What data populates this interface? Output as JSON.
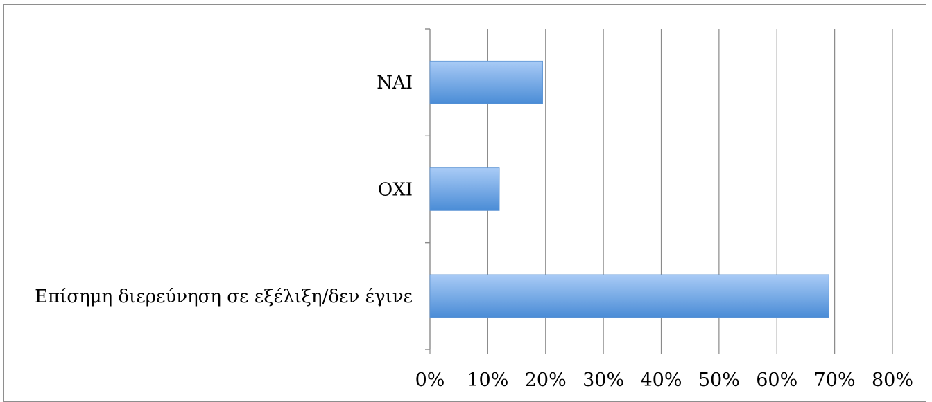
{
  "chart_data": {
    "type": "bar",
    "orientation": "horizontal",
    "title": "",
    "xlabel": "",
    "ylabel": "",
    "categories": [
      "ΝΑΙ",
      "ΟΧΙ",
      "Επίσημη διερεύνηση σε εξέλιξη/δεν έγινε"
    ],
    "values": [
      0.195,
      0.12,
      0.69
    ],
    "xlim": [
      0,
      0.8
    ],
    "x_ticks": [
      "0%",
      "10%",
      "20%",
      "30%",
      "40%",
      "50%",
      "60%",
      "70%",
      "80%"
    ],
    "grid": "vertical",
    "legend": "none",
    "bar_color_light": "#a9cbf6",
    "bar_color_dark": "#4a8cd6"
  }
}
